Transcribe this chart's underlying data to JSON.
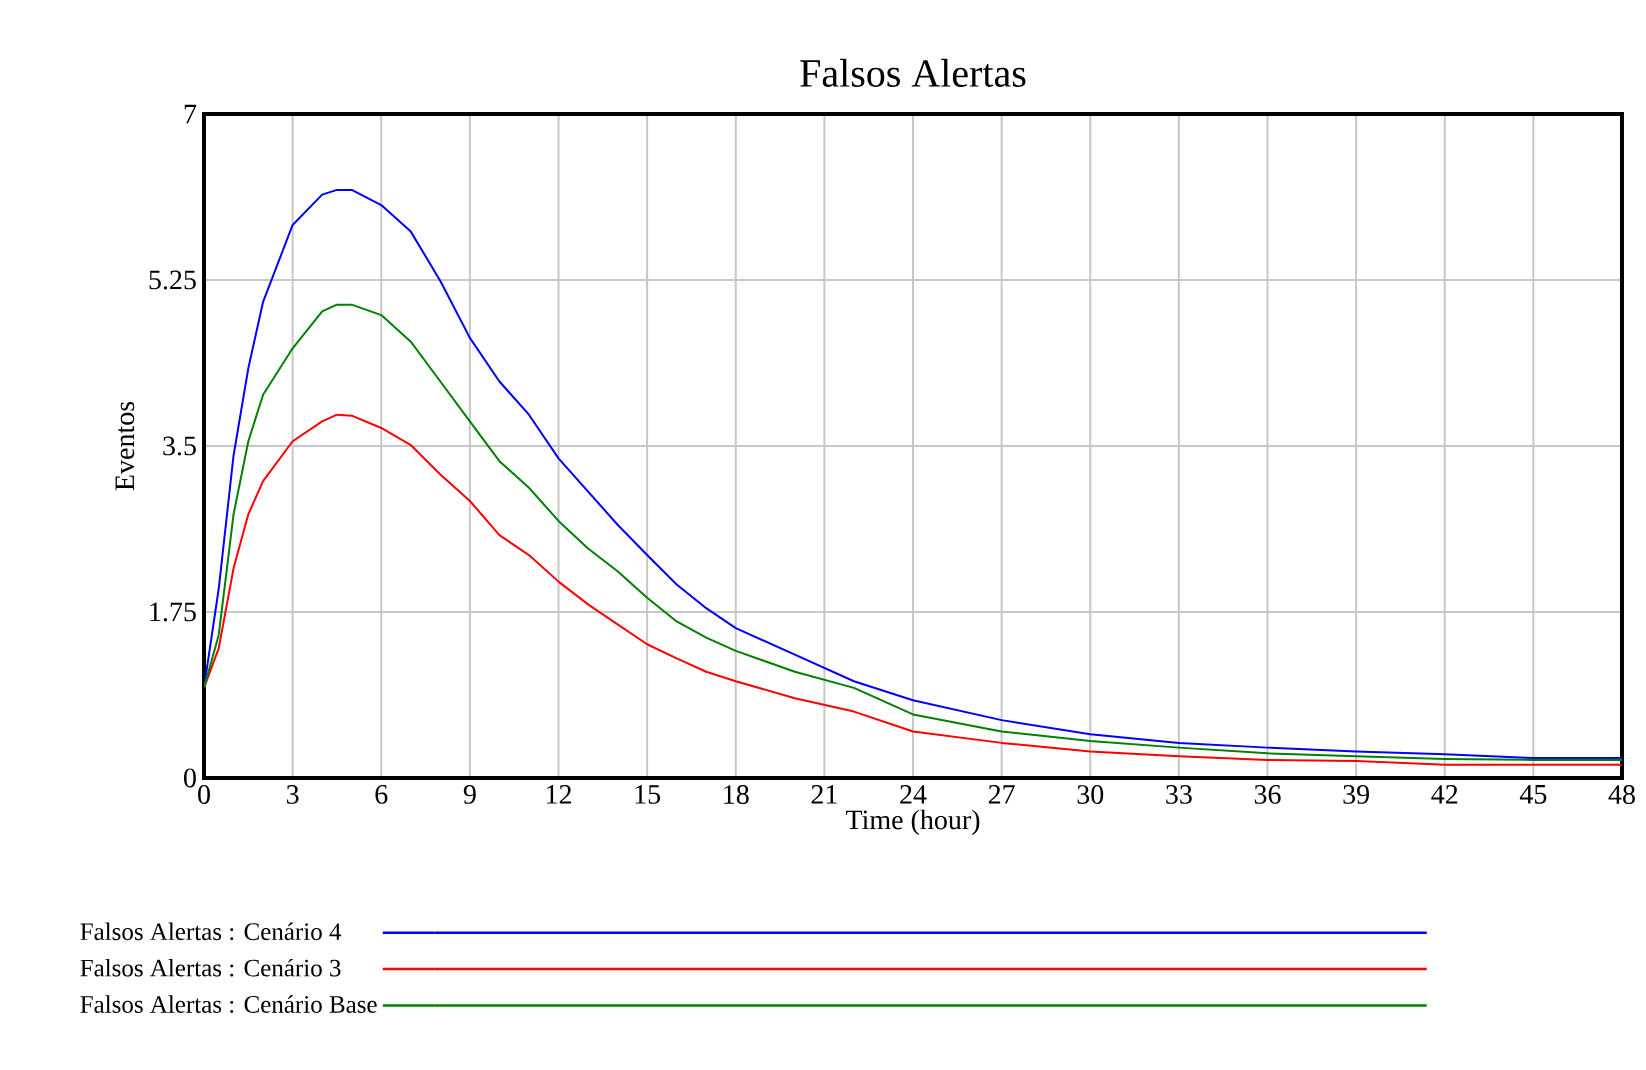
{
  "chart_data": {
    "type": "line",
    "title": "Falsos Alertas",
    "xlabel": "Time (hour)",
    "ylabel": "Eventos",
    "x": [
      0,
      0.5,
      1,
      1.5,
      2,
      3,
      4,
      4.5,
      5,
      6,
      7,
      8,
      9,
      10,
      11,
      12,
      13,
      14,
      15,
      16,
      17,
      18,
      20,
      22,
      24,
      27,
      30,
      33,
      36,
      39,
      42,
      45,
      48
    ],
    "series": [
      {
        "name": "Falsos Alertas : Cenário 4",
        "color": "#0000ff",
        "values": [
          0.95,
          2.0,
          3.4,
          4.32,
          5.02,
          5.83,
          6.15,
          6.2,
          6.2,
          6.04,
          5.76,
          5.24,
          4.64,
          4.18,
          3.83,
          3.37,
          3.02,
          2.67,
          2.35,
          2.04,
          1.79,
          1.58,
          1.3,
          1.02,
          0.82,
          0.61,
          0.46,
          0.37,
          0.32,
          0.28,
          0.25,
          0.21,
          0.21
        ]
      },
      {
        "name": "Falsos Alertas : Cenário 3",
        "color": "#ff0000",
        "values": [
          0.95,
          1.37,
          2.21,
          2.78,
          3.13,
          3.55,
          3.76,
          3.83,
          3.82,
          3.69,
          3.51,
          3.2,
          2.92,
          2.56,
          2.35,
          2.07,
          1.83,
          1.62,
          1.41,
          1.26,
          1.12,
          1.02,
          0.84,
          0.7,
          0.49,
          0.37,
          0.28,
          0.23,
          0.19,
          0.18,
          0.14,
          0.14,
          0.14
        ]
      },
      {
        "name": "Falsos Alertas : Cenário Base",
        "color": "#008000",
        "values": [
          0.95,
          1.51,
          2.78,
          3.55,
          4.04,
          4.53,
          4.92,
          4.99,
          4.99,
          4.88,
          4.6,
          4.18,
          3.76,
          3.34,
          3.06,
          2.71,
          2.42,
          2.18,
          1.9,
          1.65,
          1.48,
          1.34,
          1.12,
          0.95,
          0.67,
          0.49,
          0.39,
          0.32,
          0.26,
          0.23,
          0.2,
          0.19,
          0.19
        ]
      }
    ],
    "xlim": [
      0,
      48
    ],
    "ylim": [
      0,
      7
    ],
    "xticks": [
      0,
      3,
      6,
      9,
      12,
      15,
      18,
      21,
      24,
      27,
      30,
      33,
      36,
      39,
      42,
      45,
      48
    ],
    "yticks": [
      0,
      1.75,
      3.5,
      5.25,
      7
    ],
    "grid": true,
    "legend": "bottom",
    "marker": "none",
    "line_style": "solid"
  }
}
